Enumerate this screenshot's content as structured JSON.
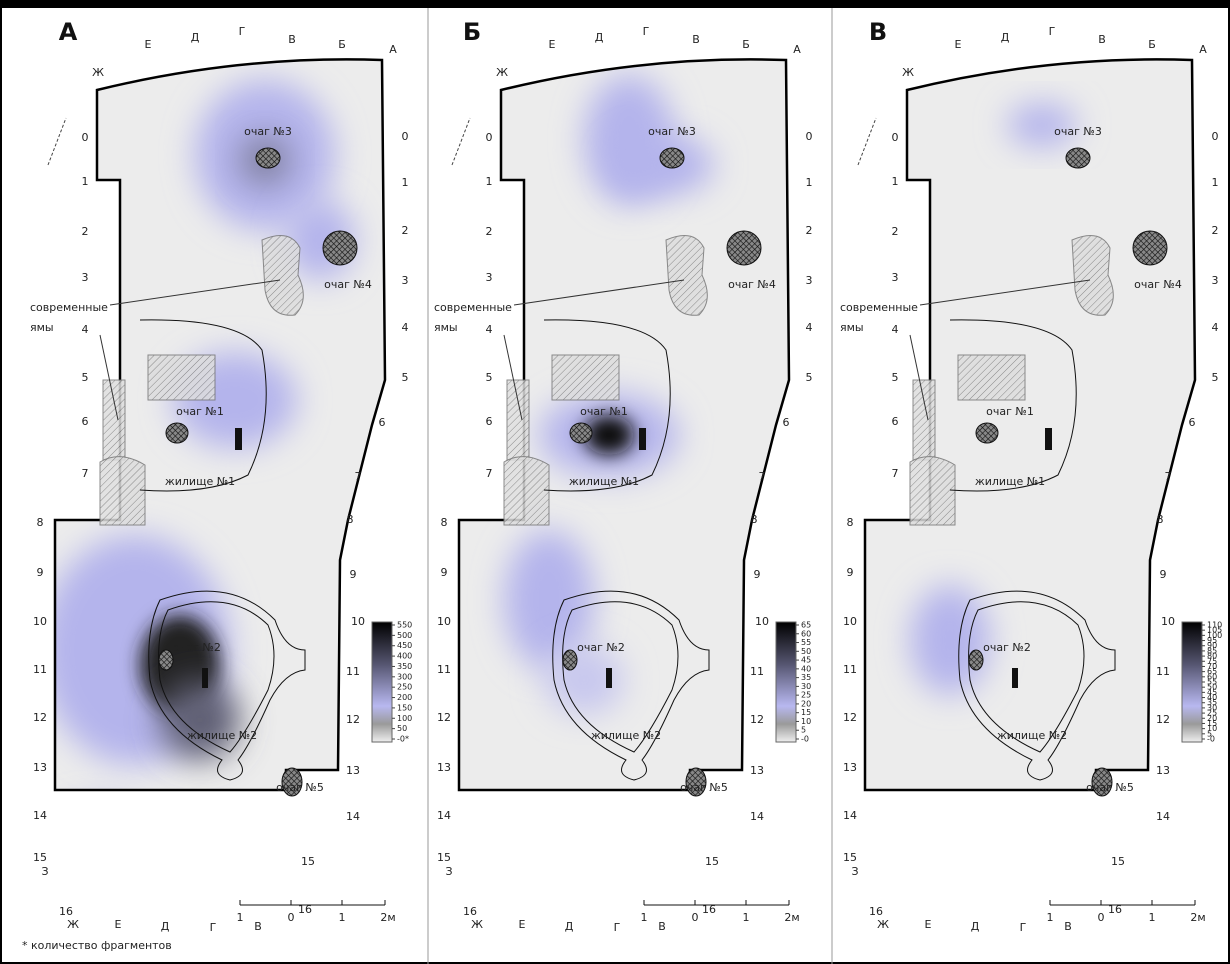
{
  "footnote": "* количество фрагментов",
  "panels": [
    {
      "letter": "А",
      "top_columns": [
        "Е",
        "Д",
        "Г",
        "В",
        "Б",
        "А",
        "Ж"
      ],
      "bottom_columns": [
        "Ж",
        "Е",
        "Д",
        "Г",
        "В"
      ],
      "left_rows": [
        "0",
        "1",
        "2",
        "3",
        "4",
        "5",
        "6",
        "7",
        "8",
        "9",
        "10",
        "11",
        "12",
        "13",
        "14",
        "15",
        "З",
        "16"
      ],
      "right_rows": [
        "0",
        "1",
        "2",
        "3",
        "4",
        "5",
        "6",
        "7",
        "8",
        "9",
        "10",
        "11",
        "12",
        "13",
        "14",
        "15",
        "16"
      ],
      "features": [
        "очаг №3",
        "очаг №4",
        "современные",
        "ямы",
        "очаг №1",
        "жилище №1",
        "очаг №2",
        "жилище №2",
        "очаг №5"
      ],
      "scale": [
        "1",
        "0",
        "1",
        "2м"
      ],
      "colorbar": {
        "range": [
          0,
          550
        ],
        "ticks": [
          550,
          500,
          450,
          400,
          350,
          300,
          250,
          200,
          150,
          100,
          50,
          {
            "value": 0,
            "label": "-0*"
          }
        ]
      }
    },
    {
      "letter": "Б",
      "top_columns": [
        "Е",
        "Д",
        "Г",
        "В",
        "Б",
        "А",
        "Ж"
      ],
      "bottom_columns": [
        "Ж",
        "Е",
        "Д",
        "Г",
        "В"
      ],
      "left_rows": [
        "0",
        "1",
        "2",
        "3",
        "4",
        "5",
        "6",
        "7",
        "8",
        "9",
        "10",
        "11",
        "12",
        "13",
        "14",
        "15",
        "З",
        "16"
      ],
      "right_rows": [
        "0",
        "1",
        "2",
        "3",
        "4",
        "5",
        "6",
        "7",
        "8",
        "9",
        "10",
        "11",
        "12",
        "13",
        "14",
        "15",
        "16"
      ],
      "features": [
        "очаг №3",
        "очаг №4",
        "современные",
        "ямы",
        "очаг №1",
        "жилище №1",
        "очаг №2",
        "жилище №2",
        "очаг №5"
      ],
      "scale": [
        "1",
        "0",
        "1",
        "2м"
      ],
      "colorbar": {
        "range": [
          0,
          65
        ],
        "ticks": [
          65,
          60,
          55,
          50,
          45,
          40,
          35,
          30,
          25,
          20,
          15,
          10,
          5,
          {
            "value": 0,
            "label": "-0"
          }
        ]
      }
    },
    {
      "letter": "В",
      "top_columns": [
        "Е",
        "Д",
        "Г",
        "В",
        "Б",
        "А",
        "Ж"
      ],
      "bottom_columns": [
        "Ж",
        "Е",
        "Д",
        "Г",
        "В"
      ],
      "left_rows": [
        "0",
        "1",
        "2",
        "3",
        "4",
        "5",
        "6",
        "7",
        "8",
        "9",
        "10",
        "11",
        "12",
        "13",
        "14",
        "15",
        "З",
        "16"
      ],
      "right_rows": [
        "0",
        "1",
        "2",
        "3",
        "4",
        "5",
        "6",
        "7",
        "8",
        "9",
        "10",
        "11",
        "12",
        "13",
        "14",
        "15",
        "16"
      ],
      "features": [
        "очаг №3",
        "очаг №4",
        "современные",
        "ямы",
        "очаг №1",
        "жилище №1",
        "очаг №2",
        "жилище №2",
        "очаг №5"
      ],
      "scale": [
        "1",
        "0",
        "1",
        "2м"
      ],
      "colorbar": {
        "range": [
          0,
          110
        ],
        "ticks": [
          110,
          105,
          100,
          95,
          90,
          85,
          80,
          75,
          70,
          65,
          60,
          55,
          50,
          45,
          40,
          35,
          30,
          25,
          20,
          15,
          10,
          5,
          {
            "value": 0,
            "label": "-0"
          }
        ]
      }
    }
  ]
}
